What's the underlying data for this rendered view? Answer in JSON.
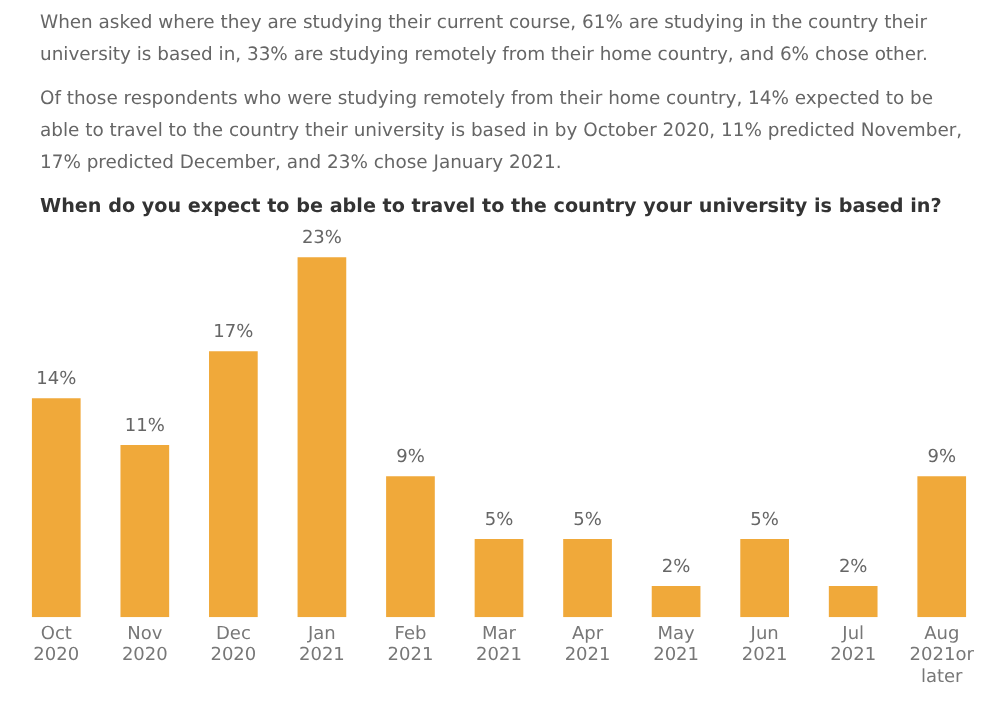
{
  "chart_data": {
    "type": "bar",
    "title": "When do you expect to be able to travel to the country your university is based in?",
    "annotations": [
      "When asked where they are studying their current course, 61% are studying in the country their university is based in, 33% are studying remotely from their home country, and 6% chose other.",
      "Of those respondents who were studying remotely from their home country, 14% expected to be able to travel to the country their university is based in by October 2020, 11% predicted November, 17% predicted December, and 23% chose January 2021."
    ],
    "categories": [
      "Oct 2020",
      "Nov 2020",
      "Dec 2020",
      "Jan 2021",
      "Feb 2021",
      "Mar 2021",
      "Apr 2021",
      "May 2021",
      "Jun 2021",
      "Jul 2021",
      "Aug 2021or later"
    ],
    "values": [
      14,
      11,
      17,
      23,
      9,
      5,
      5,
      2,
      5,
      2,
      9
    ],
    "value_labels": [
      "14%",
      "11%",
      "17%",
      "23%",
      "9%",
      "5%",
      "5%",
      "2%",
      "5%",
      "2%",
      "9%"
    ],
    "color": "#f0a93a",
    "grid": false,
    "legend": false,
    "tick_labels": "x"
  }
}
